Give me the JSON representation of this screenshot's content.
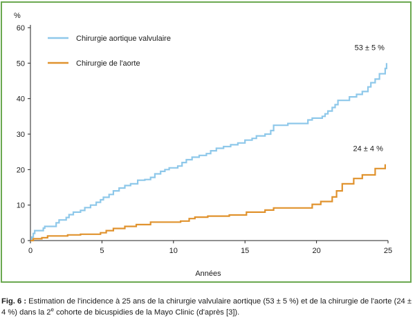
{
  "chart_data": {
    "type": "line",
    "step": true,
    "ylabel": "%",
    "xlabel": "Années",
    "xlim": [
      0,
      25
    ],
    "ylim": [
      0,
      60
    ],
    "x_ticks": [
      0,
      5,
      10,
      15,
      20,
      25
    ],
    "y_ticks": [
      0,
      10,
      20,
      30,
      40,
      50,
      60
    ],
    "legend_position": "top-left",
    "grid": false,
    "series": [
      {
        "name": "Chirurgie aortique valvulaire",
        "color": "#8ec8ea",
        "end_label": "53 ± 5 %",
        "points": [
          [
            0,
            0
          ],
          [
            0.1,
            1
          ],
          [
            0.2,
            2
          ],
          [
            0.3,
            2.8
          ],
          [
            0.9,
            3.5
          ],
          [
            1.0,
            4
          ],
          [
            1.8,
            5
          ],
          [
            2.0,
            5.8
          ],
          [
            2.5,
            6.5
          ],
          [
            2.7,
            7.3
          ],
          [
            3.0,
            8
          ],
          [
            3.5,
            8.5
          ],
          [
            3.8,
            9.3
          ],
          [
            4.2,
            10
          ],
          [
            4.6,
            10.8
          ],
          [
            4.9,
            11.5
          ],
          [
            5.1,
            12.2
          ],
          [
            5.5,
            13
          ],
          [
            5.8,
            14
          ],
          [
            6.2,
            14.8
          ],
          [
            6.6,
            15.5
          ],
          [
            7.0,
            16
          ],
          [
            7.5,
            17
          ],
          [
            8.0,
            17.2
          ],
          [
            8.4,
            17.8
          ],
          [
            8.7,
            18.8
          ],
          [
            9.1,
            19.5
          ],
          [
            9.4,
            20
          ],
          [
            9.7,
            20.5
          ],
          [
            10.3,
            21
          ],
          [
            10.6,
            22
          ],
          [
            10.9,
            22.8
          ],
          [
            11.3,
            23.5
          ],
          [
            11.8,
            24
          ],
          [
            12.3,
            24.5
          ],
          [
            12.6,
            25.3
          ],
          [
            13.0,
            26
          ],
          [
            13.5,
            26.5
          ],
          [
            14.0,
            27
          ],
          [
            14.5,
            27.5
          ],
          [
            15.0,
            28.3
          ],
          [
            15.5,
            28.8
          ],
          [
            15.8,
            29.5
          ],
          [
            16.4,
            30
          ],
          [
            16.8,
            31
          ],
          [
            17.0,
            32.5
          ],
          [
            18.0,
            33
          ],
          [
            19.4,
            34
          ],
          [
            19.7,
            34.5
          ],
          [
            20.4,
            35
          ],
          [
            20.6,
            35.7
          ],
          [
            20.8,
            36.5
          ],
          [
            21.1,
            37.5
          ],
          [
            21.3,
            38.3
          ],
          [
            21.5,
            39.5
          ],
          [
            22.3,
            40.5
          ],
          [
            22.8,
            41.2
          ],
          [
            23.2,
            42
          ],
          [
            23.6,
            43.3
          ],
          [
            23.8,
            44.5
          ],
          [
            24.1,
            45.5
          ],
          [
            24.4,
            47
          ],
          [
            24.8,
            48.5
          ],
          [
            24.9,
            50
          ]
        ]
      },
      {
        "name": "Chirurgie de l'aorte",
        "color": "#e0922d",
        "end_label": "24 ± 4 %",
        "points": [
          [
            0,
            0
          ],
          [
            0.2,
            0.5
          ],
          [
            0.8,
            0.8
          ],
          [
            1.2,
            1.3
          ],
          [
            2.6,
            1.6
          ],
          [
            3.5,
            1.8
          ],
          [
            4.9,
            2.2
          ],
          [
            5.3,
            2.8
          ],
          [
            5.8,
            3.4
          ],
          [
            6.6,
            4
          ],
          [
            7.4,
            4.5
          ],
          [
            8.4,
            5.2
          ],
          [
            10.5,
            5.5
          ],
          [
            11.1,
            6.2
          ],
          [
            11.5,
            6.6
          ],
          [
            12.4,
            6.9
          ],
          [
            13.9,
            7.2
          ],
          [
            15.1,
            8
          ],
          [
            16.4,
            8.6
          ],
          [
            17.0,
            9.2
          ],
          [
            18.8,
            9.2
          ],
          [
            19.7,
            10.2
          ],
          [
            20.3,
            11
          ],
          [
            21.1,
            12.3
          ],
          [
            21.4,
            14
          ],
          [
            21.8,
            16
          ],
          [
            22.6,
            17.5
          ],
          [
            23.2,
            18.5
          ],
          [
            24.1,
            20.3
          ],
          [
            24.8,
            21.5
          ]
        ]
      }
    ]
  },
  "caption": {
    "prefix": "Fig. 6 :",
    "part1": " Estimation de l'incidence à 25 ans de la chirurgie valvulaire aortique (53 ± 5 %) et de la chirurgie de l'aorte (24 ± 4 %) dans la 2",
    "superscript": "e",
    "part2": " cohorte de bicuspidies de la Mayo Clinic (d'après [3])."
  }
}
